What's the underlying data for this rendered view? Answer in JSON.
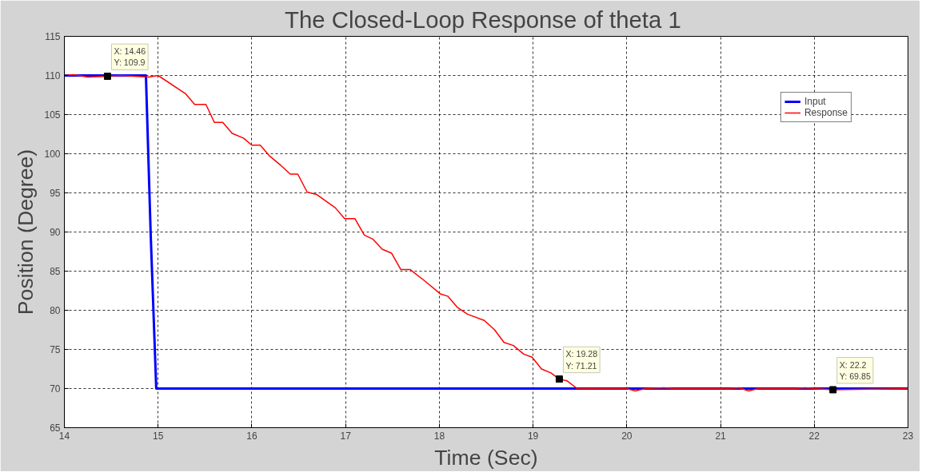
{
  "chart_data": {
    "type": "line",
    "title": "The  Closed-Loop Response of theta 1",
    "xlabel": "Time (Sec)",
    "ylabel": "Position (Degree)",
    "xlim": [
      14,
      23
    ],
    "xticks": [
      14,
      15,
      16,
      17,
      18,
      19,
      20,
      21,
      22,
      23
    ],
    "ylim": [
      65,
      115
    ],
    "yticks": [
      65,
      70,
      75,
      80,
      85,
      90,
      95,
      100,
      105,
      110,
      115
    ],
    "grid": true,
    "legend": "top right",
    "marker": "none",
    "line_style": "solid",
    "series": [
      {
        "name": "Input",
        "color": "#0000ff",
        "x": [
          14,
          14.87,
          14.92,
          14.98,
          23
        ],
        "values": [
          110,
          110,
          90,
          70,
          70
        ]
      },
      {
        "name": "Response",
        "color": "#ff0000",
        "x": [
          14,
          14.1,
          14.25,
          14.46,
          14.6,
          14.9,
          15.0,
          15.29,
          15.39,
          15.51,
          15.6,
          15.69,
          15.79,
          15.91,
          16.0,
          16.09,
          16.19,
          16.31,
          16.41,
          16.49,
          16.59,
          16.69,
          16.89,
          16.99,
          17.1,
          17.2,
          17.29,
          17.39,
          17.49,
          17.59,
          17.69,
          17.85,
          18.01,
          18.09,
          18.19,
          18.3,
          18.48,
          18.59,
          18.69,
          18.79,
          18.9,
          18.99,
          19.09,
          19.19,
          19.28,
          19.36,
          19.47,
          20.0,
          20.09,
          20.2,
          20.4,
          20.5,
          21.1,
          21.2,
          21.3,
          21.4,
          21.8,
          21.9,
          22.0,
          22.2,
          23
        ],
        "values": [
          110,
          110.1,
          109.8,
          109.9,
          110,
          109.8,
          110,
          107.7,
          106.3,
          106.3,
          104.0,
          104.0,
          102.6,
          102.0,
          101.1,
          101.1,
          99.7,
          98.5,
          97.4,
          97.4,
          95.1,
          94.8,
          93.1,
          91.7,
          91.7,
          89.6,
          89.1,
          87.8,
          87.3,
          85.2,
          85.2,
          83.7,
          82.1,
          81.8,
          80.4,
          79.5,
          78.7,
          77.5,
          75.9,
          75.5,
          74.4,
          74.0,
          72.5,
          72.0,
          71.21,
          71.0,
          70,
          70,
          69.7,
          70,
          70.1,
          70,
          70,
          70.1,
          69.7,
          70,
          70,
          70.1,
          70,
          69.85,
          70
        ]
      }
    ],
    "annotations": [
      {
        "text": "X: 14.46\nY: 109.9",
        "x": 14.46,
        "y": 109.9
      },
      {
        "text": "X: 19.28\nY: 71.21",
        "x": 19.28,
        "y": 71.21
      },
      {
        "text": "X: 22.2\nY: 69.85",
        "x": 22.2,
        "y": 69.85
      }
    ]
  }
}
